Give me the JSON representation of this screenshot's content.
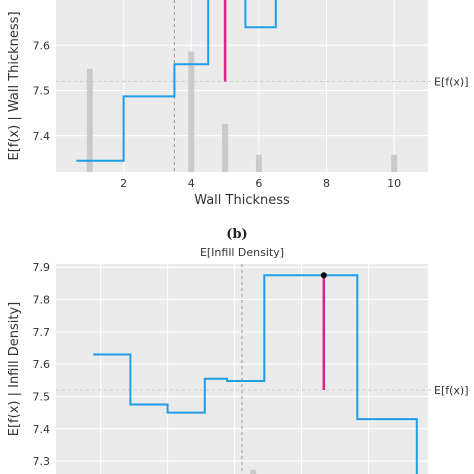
{
  "caption": "(b)",
  "chart_data": [
    {
      "type": "line",
      "xlabel": "Wall Thickness",
      "ylabel": "E[f(x) | Wall Thickness]",
      "top_label": "",
      "right_label": "E[f(x)]",
      "xlim": [
        0,
        11
      ],
      "ylim": [
        7.32,
        7.7
      ],
      "xticks": [
        2,
        4,
        6,
        8,
        10
      ],
      "yticks": [
        7.4,
        7.5,
        7.6
      ],
      "expected_fx": 7.52,
      "expected_feature": 3.5,
      "line": {
        "x": [
          0.6,
          2.0,
          2.0,
          3.5,
          3.5,
          4.5,
          4.5,
          5.0,
          5.0,
          5.6,
          5.6,
          6.5,
          6.5
        ],
        "y": [
          7.345,
          7.345,
          7.487,
          7.487,
          7.558,
          7.558,
          7.75,
          7.75,
          7.77,
          7.77,
          7.64,
          7.64,
          7.77
        ]
      },
      "highlight": {
        "x": 5.0,
        "y_from": 7.52,
        "y_to": 7.75
      },
      "histogram": [
        {
          "x": 1.0,
          "height": 0.6
        },
        {
          "x": 4.0,
          "height": 0.7
        },
        {
          "x": 5.0,
          "height": 0.28
        },
        {
          "x": 6.0,
          "height": 0.1
        },
        {
          "x": 10.0,
          "height": 0.1
        }
      ]
    },
    {
      "type": "line",
      "xlabel": "",
      "ylabel": "E[f(x) | Infill Density]",
      "top_label": "E[Infill Density]",
      "right_label": "E[f(x)]",
      "xlim": [
        0,
        100
      ],
      "ylim": [
        7.26,
        7.91
      ],
      "xticks": [],
      "yticks": [
        7.3,
        7.4,
        7.5,
        7.6,
        7.7,
        7.8,
        7.9
      ],
      "expected_fx": 7.52,
      "expected_feature": 50,
      "line": {
        "x": [
          10,
          20,
          20,
          30,
          30,
          40,
          40,
          46,
          46,
          56,
          56,
          64,
          64,
          81,
          81,
          82,
          82,
          97,
          97,
          100
        ],
        "y": [
          7.63,
          7.63,
          7.475,
          7.475,
          7.45,
          7.45,
          7.555,
          7.555,
          7.548,
          7.548,
          7.875,
          7.875,
          7.875,
          7.875,
          7.43,
          7.43,
          7.43,
          7.43,
          7.25,
          7.25
        ]
      },
      "highlight": {
        "x": 72,
        "y_from": 7.52,
        "y_to": 7.875
      },
      "point": {
        "x": 72,
        "y": 7.875
      },
      "histogram": [
        {
          "x": 53,
          "height": 0.02
        }
      ]
    }
  ]
}
